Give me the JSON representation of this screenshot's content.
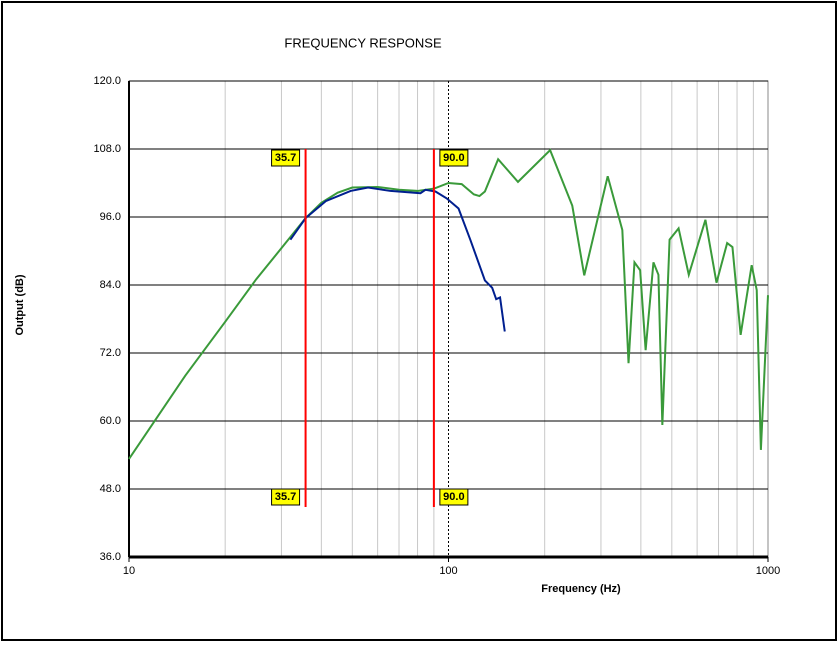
{
  "chart_data": {
    "type": "line",
    "title": "FREQUENCY RESPONSE",
    "xlabel": "Frequency (Hz)",
    "ylabel": "Output (dB)",
    "xscale": "log",
    "xlim": [
      10,
      1000
    ],
    "xticks": [
      10,
      100,
      1000
    ],
    "xminor": [
      20,
      30,
      40,
      50,
      60,
      70,
      80,
      90,
      200,
      300,
      400,
      500,
      600,
      700,
      800,
      900
    ],
    "ylim": [
      36,
      120
    ],
    "yticks": [
      {
        "value": 36,
        "label": "36.0"
      },
      {
        "value": 48,
        "label": "48.0"
      },
      {
        "value": 60,
        "label": "60.0"
      },
      {
        "value": 72,
        "label": "72.0"
      },
      {
        "value": 84,
        "label": "84.0"
      },
      {
        "value": 96,
        "label": "96.0"
      },
      {
        "value": 108,
        "label": "108.0"
      },
      {
        "value": 120,
        "label": "120.0"
      }
    ],
    "grid": true,
    "ref_x": 100,
    "markers": [
      35.7,
      {
        "value": 90,
        "label": "90.0"
      }
    ],
    "marker_color": "#ff0000",
    "series": [
      {
        "color": "#3a9a3a",
        "x": [
          10,
          15,
          20,
          25,
          30,
          35.7,
          40,
          45,
          50,
          60,
          70,
          80,
          90,
          100,
          110,
          120,
          125,
          130,
          143,
          165,
          208,
          244,
          266,
          315,
          350,
          366,
          382,
          398,
          414,
          438,
          454,
          467,
          492,
          525,
          565,
          637,
          690,
          745,
          774,
          821,
          889,
          922,
          950,
          1000
        ],
        "values": [
          53.3,
          68,
          77.5,
          85,
          90.5,
          95.8,
          98.5,
          100.3,
          101.2,
          101.3,
          100.8,
          100.6,
          101,
          102,
          101.8,
          100,
          99.7,
          100.5,
          106.2,
          102.2,
          107.8,
          98,
          85.7,
          103.2,
          93.7,
          70.2,
          88,
          86.6,
          72.5,
          88,
          85.8,
          59.3,
          92,
          94,
          85.8,
          95.5,
          84.4,
          91.4,
          90.7,
          75.2,
          87.5,
          83.1,
          54.9,
          82.2
        ]
      },
      {
        "color": "#001f8f",
        "x": [
          32,
          35.7,
          41.3,
          49.4,
          56,
          65.8,
          81.7,
          84.7,
          91,
          98.6,
          107.5,
          117,
          130,
          137,
          141,
          145,
          150
        ],
        "values": [
          92,
          95.8,
          98.8,
          100.6,
          101.2,
          100.6,
          100.2,
          100.8,
          100.5,
          99.3,
          97.5,
          92,
          84.8,
          83.5,
          81.5,
          81.8,
          75.8
        ]
      }
    ]
  }
}
